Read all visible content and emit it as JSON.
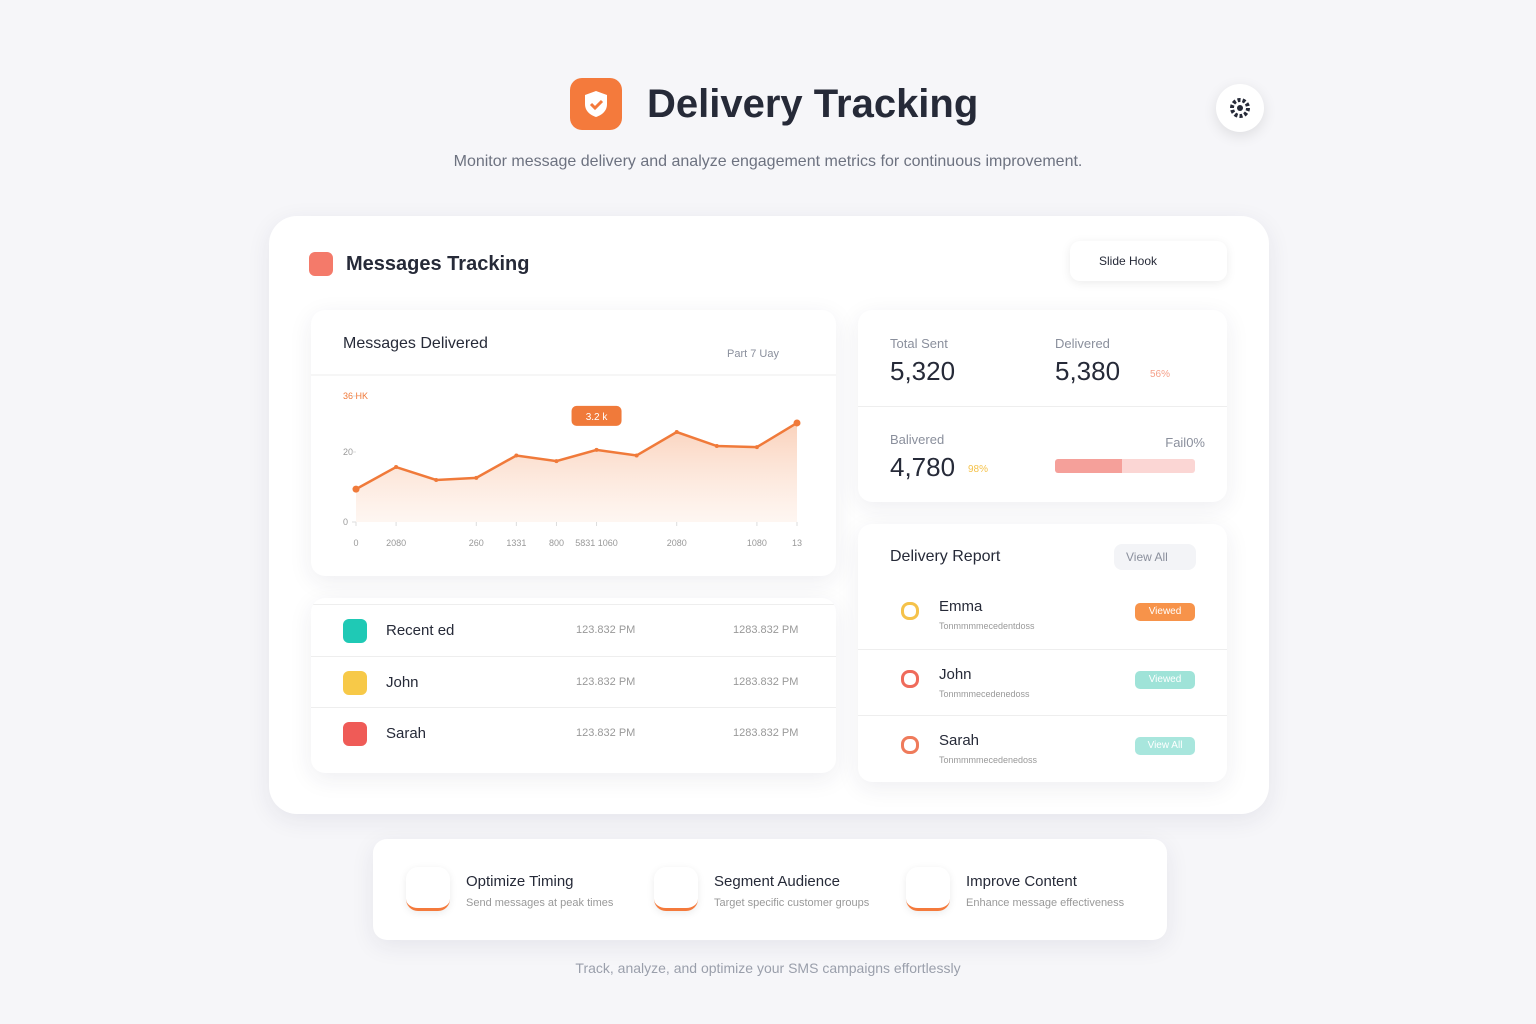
{
  "header": {
    "title": "Delivery Tracking",
    "subtitle": "Monitor message delivery and analyze engagement metrics for continuous improvement."
  },
  "panel": {
    "title": "Messages Tracking",
    "button": "Slide Hook"
  },
  "chart": {
    "type": "line",
    "title": "Messages Delivered",
    "period": "Part 7 Uay",
    "annotation": "3.2 k",
    "color": "#f07a3a",
    "categories": [
      "0",
      "2080",
      null,
      "260",
      "1331",
      "800",
      "5831 1060",
      null,
      "2080",
      null,
      "1080",
      "13"
    ],
    "values": [
      9.4,
      15.7,
      12,
      12.6,
      19,
      17.4,
      20.6,
      19,
      25.7,
      21.7,
      21.4,
      28.3
    ],
    "ylim": [
      0,
      40
    ],
    "yticks": [
      0,
      20,
      {
        "value": 36,
        "label": "36 HK"
      }
    ]
  },
  "stats": [
    {
      "label": "Total Sent",
      "value": "5,320"
    },
    {
      "label": "Delivered",
      "value": "5,380",
      "note": "56%"
    },
    {
      "label": "Balivered",
      "value": "4,780",
      "note": "98%"
    },
    {
      "label": "Fail0%"
    }
  ],
  "recent": [
    {
      "name": "Recent ed",
      "a": "123.832 PM",
      "b": "1283.832 PM"
    },
    {
      "name": "John",
      "a": "123.832 PM",
      "b": "1283.832 PM"
    },
    {
      "name": "Sarah",
      "a": "123.832 PM",
      "b": "1283.832 PM"
    }
  ],
  "report": {
    "title": "Delivery Report",
    "action": "View All",
    "rows": [
      {
        "name": "Emma",
        "sub": "Tonmmmmecedentdoss",
        "status": "Viewed"
      },
      {
        "name": "John",
        "sub": "Tonmmmecedenedoss",
        "status": "Viewed"
      },
      {
        "name": "Sarah",
        "sub": "Tonmmmmecedenedoss",
        "status": "View All"
      }
    ]
  },
  "tips": [
    {
      "title": "Optimize Timing",
      "text": "Send messages at peak times"
    },
    {
      "title": "Segment Audience",
      "text": "Target specific customer groups"
    },
    {
      "title": "Improve Content",
      "text": "Enhance message effectiveness"
    }
  ],
  "footer": "Track, analyze, and optimize your SMS campaigns effortlessly"
}
